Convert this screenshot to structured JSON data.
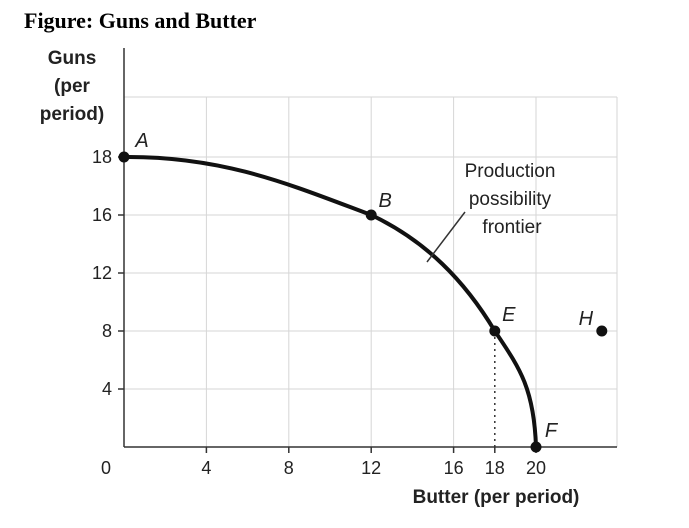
{
  "figure_title": "Figure: Guns and Butter",
  "chart_data": {
    "type": "line",
    "title": "Figure: Guns and Butter",
    "xlabel": "Butter (per period)",
    "ylabel": [
      "Guns",
      "(per",
      "period)"
    ],
    "origin_label": "0",
    "x_ticks": [
      4,
      8,
      12,
      16,
      18,
      20
    ],
    "y_ticks": [
      4,
      8,
      12,
      16,
      18
    ],
    "grid": true,
    "series": [
      {
        "name": "Production possibility frontier",
        "points": [
          {
            "x": 0,
            "y": 18,
            "label": "A"
          },
          {
            "x": 12,
            "y": 16,
            "label": "B"
          },
          {
            "x": 18,
            "y": 8,
            "label": "E"
          },
          {
            "x": 20,
            "y": 0,
            "label": "F"
          }
        ]
      }
    ],
    "extra_points": [
      {
        "x": 23,
        "y": 8,
        "label": "H"
      }
    ],
    "annotation": [
      "Production",
      "possibility",
      "frontier"
    ],
    "dotted_guides": [
      {
        "x": 18,
        "from_y": 0,
        "to_y": 8
      }
    ]
  }
}
